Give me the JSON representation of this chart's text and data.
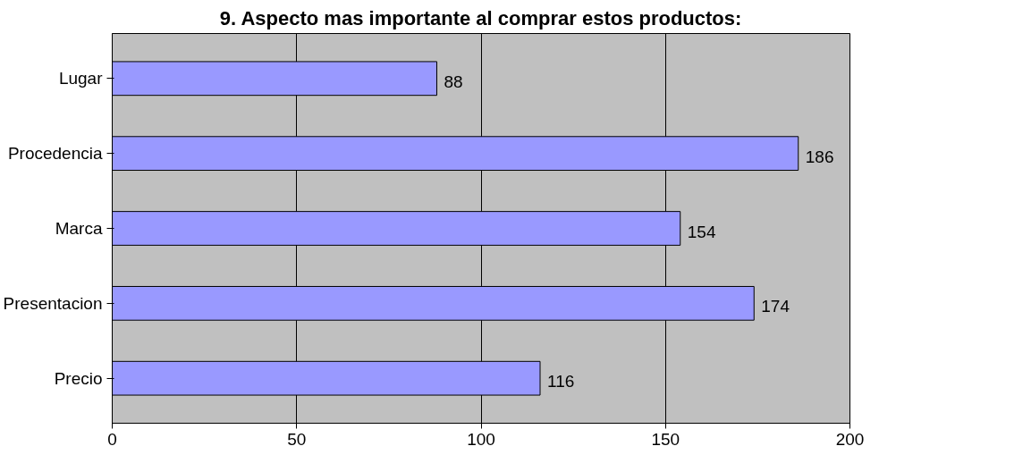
{
  "chart_data": {
    "type": "bar",
    "orientation": "horizontal",
    "title": "9. Aspecto mas importante al comprar estos productos:",
    "categories": [
      "Lugar",
      "Procedencia",
      "Marca",
      "Presentacion",
      "Precio"
    ],
    "values": [
      88,
      186,
      154,
      174,
      116
    ],
    "color": "#9999ff",
    "xlim": [
      0,
      200
    ],
    "xticks": [
      0,
      50,
      100,
      150,
      200
    ],
    "grid": "x",
    "data_labels": true
  }
}
